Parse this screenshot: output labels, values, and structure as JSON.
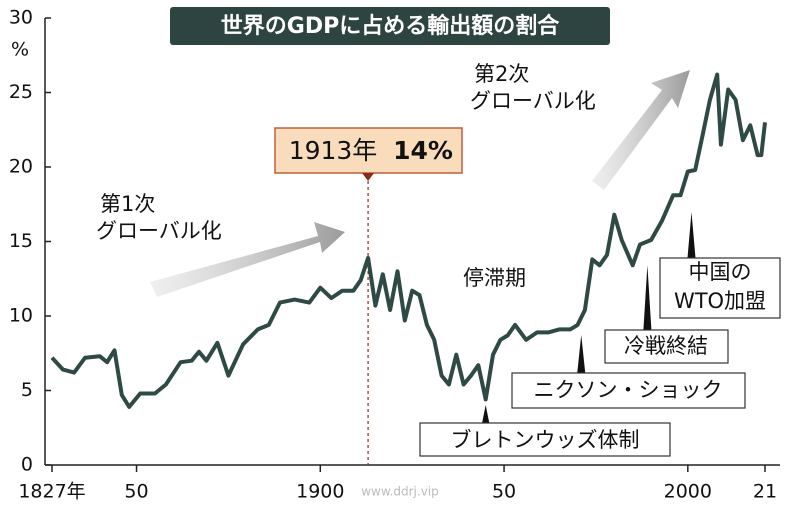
{
  "chart_data": {
    "type": "line",
    "title": "世界のGDPに占める輸出額の割合",
    "y_unit": "%",
    "color": "#2f4a45",
    "x": [
      1827,
      1830,
      1833,
      1836,
      1840,
      1842,
      1844,
      1846,
      1848,
      1851,
      1855,
      1858,
      1862,
      1865,
      1867,
      1869,
      1872,
      1875,
      1879,
      1883,
      1886,
      1889,
      1893,
      1897,
      1900,
      1903,
      1906,
      1909,
      1911,
      1913,
      1915,
      1917,
      1919,
      1921,
      1923,
      1925,
      1927,
      1929,
      1931,
      1933,
      1935,
      1937,
      1939,
      1941,
      1943,
      1945,
      1947,
      1949,
      1951,
      1953,
      1956,
      1959,
      1962,
      1965,
      1968,
      1970,
      1972,
      1974,
      1976,
      1978,
      1980,
      1982,
      1985,
      1987,
      1990,
      1993,
      1996,
      1998,
      2000,
      2002,
      2004,
      2006,
      2008,
      2009,
      2011,
      2013,
      2015,
      2017,
      2019,
      2020,
      2021
    ],
    "values": [
      7.2,
      6.4,
      6.2,
      7.2,
      7.3,
      6.9,
      7.7,
      4.7,
      3.9,
      4.8,
      4.8,
      5.4,
      6.9,
      7.0,
      7.6,
      7.0,
      8.2,
      6.0,
      8.1,
      9.1,
      9.4,
      10.9,
      11.1,
      10.9,
      11.9,
      11.2,
      11.7,
      11.7,
      12.4,
      13.9,
      10.7,
      12.8,
      10.4,
      13.0,
      9.7,
      11.7,
      11.4,
      9.4,
      8.4,
      6.0,
      5.4,
      7.4,
      5.4,
      6.0,
      6.7,
      4.4,
      7.4,
      8.4,
      8.7,
      9.4,
      8.4,
      8.9,
      8.9,
      9.1,
      9.1,
      9.4,
      10.4,
      13.8,
      13.4,
      14.1,
      16.8,
      15.1,
      13.4,
      14.8,
      15.1,
      16.4,
      18.1,
      18.1,
      19.7,
      19.8,
      22.1,
      24.5,
      26.2,
      21.5,
      25.2,
      24.5,
      21.8,
      22.8,
      20.8,
      20.8,
      23.0
    ],
    "xlim": [
      1827,
      2021
    ],
    "xticks": [
      {
        "value": 1827,
        "label": "1827年"
      },
      {
        "value": 1850,
        "label": "50"
      },
      1900,
      {
        "value": 1950,
        "label": "50"
      },
      2000,
      {
        "value": 2021,
        "label": "21"
      }
    ],
    "ylim": [
      0,
      30
    ],
    "yticks": [
      0,
      5,
      10,
      15,
      20,
      25,
      30
    ],
    "annotations": {
      "first_globalization": [
        "第1次",
        "グローバル化"
      ],
      "second_globalization": [
        "第2次",
        "グローバル化"
      ],
      "stagnation": "停滞期",
      "peak_year": "1913年",
      "peak_value": "14%",
      "bretton_woods": "ブレトンウッズ体制",
      "nixon_shock": "ニクソン・ショック",
      "cold_war_end": "冷戦終結",
      "china_wto": [
        "中国の",
        "WTO加盟"
      ]
    },
    "watermark": "www.ddrj.vip"
  }
}
